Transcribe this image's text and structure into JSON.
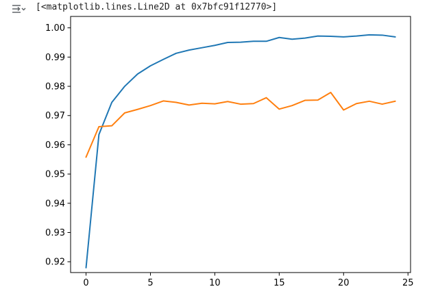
{
  "output": {
    "icon": "output-actions-icon",
    "text": "[<matplotlib.lines.Line2D at 0x7bfc91f12770>]"
  },
  "chart_data": {
    "type": "line",
    "title": "",
    "xlabel": "",
    "ylabel": "",
    "xlim": [
      -1.2,
      25.2
    ],
    "ylim": [
      0.9163,
      1.0039
    ],
    "grid": false,
    "x": [
      0,
      1,
      2,
      3,
      4,
      5,
      6,
      7,
      8,
      9,
      10,
      11,
      12,
      13,
      14,
      15,
      16,
      17,
      18,
      19,
      20,
      21,
      22,
      23,
      24
    ],
    "xticks": [
      0,
      5,
      10,
      15,
      20,
      25
    ],
    "yticks": [
      0.92,
      0.93,
      0.94,
      0.95,
      0.96,
      0.97,
      0.98,
      0.99,
      1.0
    ],
    "xtick_labels": [
      "0",
      "5",
      "10",
      "15",
      "20",
      "25"
    ],
    "ytick_labels": [
      "0.92",
      "0.93",
      "0.94",
      "0.95",
      "0.96",
      "0.97",
      "0.98",
      "0.99",
      "1.00"
    ],
    "series": [
      {
        "color": "#1f77b4",
        "values": [
          0.918,
          0.9635,
          0.9745,
          0.98,
          0.9842,
          0.987,
          0.9892,
          0.9913,
          0.9924,
          0.9932,
          0.994,
          0.995,
          0.9951,
          0.9954,
          0.9954,
          0.9967,
          0.9961,
          0.9965,
          0.9972,
          0.9971,
          0.9969,
          0.9972,
          0.9976,
          0.9975,
          0.9969
        ]
      },
      {
        "color": "#ff7f0e",
        "values": [
          0.9558,
          0.9662,
          0.9665,
          0.9709,
          0.9721,
          0.9734,
          0.975,
          0.9745,
          0.9736,
          0.9742,
          0.974,
          0.9748,
          0.9739,
          0.9741,
          0.9761,
          0.9722,
          0.9734,
          0.9752,
          0.9753,
          0.9779,
          0.9719,
          0.9741,
          0.9749,
          0.9739,
          0.9749
        ]
      }
    ]
  }
}
